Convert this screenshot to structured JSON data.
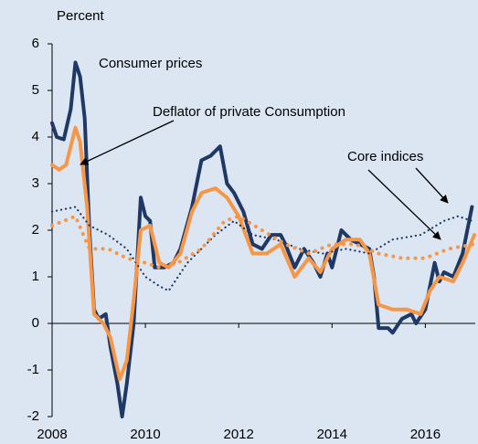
{
  "chart_data": {
    "type": "line",
    "y_label": "Percent",
    "annotations": [
      "Core indices"
    ],
    "xlim": [
      2008,
      2017.07
    ],
    "xticks": [
      2008,
      2010,
      2012,
      2014,
      2016
    ],
    "ylim": [
      -2,
      6
    ],
    "yticks": [
      -2,
      -1,
      0,
      1,
      2,
      3,
      4,
      5,
      6
    ],
    "series": [
      {
        "name": "Consumer prices",
        "color": "#1f3864",
        "style": "solid",
        "x": [
          2008.0,
          2008.1,
          2008.25,
          2008.4,
          2008.5,
          2008.6,
          2008.7,
          2008.8,
          2008.9,
          2009.0,
          2009.15,
          2009.25,
          2009.4,
          2009.5,
          2009.6,
          2009.75,
          2009.9,
          2010.0,
          2010.1,
          2010.2,
          2010.4,
          2010.6,
          2010.75,
          2011.0,
          2011.2,
          2011.4,
          2011.6,
          2011.75,
          2011.9,
          2012.1,
          2012.3,
          2012.5,
          2012.7,
          2012.9,
          2013.0,
          2013.2,
          2013.4,
          2013.6,
          2013.75,
          2013.9,
          2014.0,
          2014.2,
          2014.4,
          2014.6,
          2014.8,
          2014.9,
          2015.0,
          2015.2,
          2015.3,
          2015.5,
          2015.7,
          2015.8,
          2016.0,
          2016.2,
          2016.3,
          2016.4,
          2016.6,
          2016.8,
          2017.0
        ],
        "values": [
          4.3,
          4.0,
          3.95,
          4.6,
          5.6,
          5.3,
          4.4,
          2.0,
          0.3,
          0.1,
          0.2,
          -0.5,
          -1.3,
          -2.0,
          -1.3,
          0.0,
          2.7,
          2.3,
          2.2,
          1.2,
          1.2,
          1.3,
          1.6,
          2.5,
          3.5,
          3.6,
          3.8,
          3.0,
          2.8,
          2.4,
          1.7,
          1.6,
          1.9,
          1.9,
          1.7,
          1.2,
          1.6,
          1.3,
          1.0,
          1.5,
          1.2,
          2.0,
          1.8,
          1.7,
          1.6,
          1.0,
          -0.1,
          -0.1,
          -0.2,
          0.1,
          0.2,
          0.0,
          0.3,
          1.3,
          0.9,
          1.1,
          1.0,
          1.5,
          2.5
        ]
      },
      {
        "name": "Deflator of private Consumption",
        "color": "#f79646",
        "style": "solid",
        "x": [
          2008.0,
          2008.15,
          2008.3,
          2008.5,
          2008.6,
          2008.75,
          2008.9,
          2009.1,
          2009.25,
          2009.45,
          2009.6,
          2009.75,
          2009.9,
          2010.1,
          2010.3,
          2010.5,
          2010.75,
          2011.0,
          2011.2,
          2011.5,
          2011.75,
          2012.0,
          2012.3,
          2012.6,
          2012.9,
          2013.2,
          2013.5,
          2013.75,
          2014.0,
          2014.3,
          2014.6,
          2014.8,
          2015.0,
          2015.3,
          2015.6,
          2015.9,
          2016.1,
          2016.3,
          2016.6,
          2016.8,
          2017.05
        ],
        "values": [
          3.4,
          3.3,
          3.4,
          4.2,
          3.9,
          2.5,
          0.2,
          0.0,
          -0.3,
          -1.2,
          -0.8,
          0.5,
          2.0,
          2.1,
          1.3,
          1.2,
          1.5,
          2.4,
          2.8,
          2.9,
          2.7,
          2.3,
          1.5,
          1.5,
          1.7,
          1.0,
          1.4,
          1.1,
          1.6,
          1.8,
          1.8,
          1.5,
          0.4,
          0.3,
          0.3,
          0.2,
          0.7,
          1.0,
          0.9,
          1.3,
          1.9
        ]
      },
      {
        "color": "#1f3864",
        "style": "dotted",
        "x": [
          2008.0,
          2008.5,
          2008.8,
          2009.2,
          2009.6,
          2010.0,
          2010.3,
          2010.5,
          2010.9,
          2011.5,
          2011.9,
          2012.3,
          2012.8,
          2013.3,
          2013.8,
          2014.3,
          2014.8,
          2015.3,
          2015.9,
          2016.4,
          2016.7,
          2017.0
        ],
        "values": [
          2.4,
          2.5,
          2.1,
          1.9,
          1.6,
          1.0,
          0.8,
          0.7,
          1.3,
          1.9,
          2.2,
          1.9,
          1.8,
          1.6,
          1.5,
          1.6,
          1.5,
          1.8,
          1.9,
          2.2,
          2.3,
          2.2
        ]
      },
      {
        "color": "#f79646",
        "style": "dotted",
        "x": [
          2008.0,
          2008.5,
          2008.8,
          2009.2,
          2009.6,
          2010.0,
          2010.3,
          2010.7,
          2011.2,
          2011.7,
          2012.0,
          2012.5,
          2013.0,
          2013.5,
          2014.0,
          2014.5,
          2015.0,
          2015.5,
          2016.0,
          2016.5,
          2017.05
        ],
        "values": [
          2.1,
          2.3,
          1.6,
          1.6,
          1.4,
          1.3,
          1.2,
          1.3,
          1.6,
          2.2,
          2.3,
          2.0,
          1.7,
          1.5,
          1.7,
          1.7,
          1.5,
          1.4,
          1.4,
          1.6,
          1.7
        ]
      }
    ]
  }
}
